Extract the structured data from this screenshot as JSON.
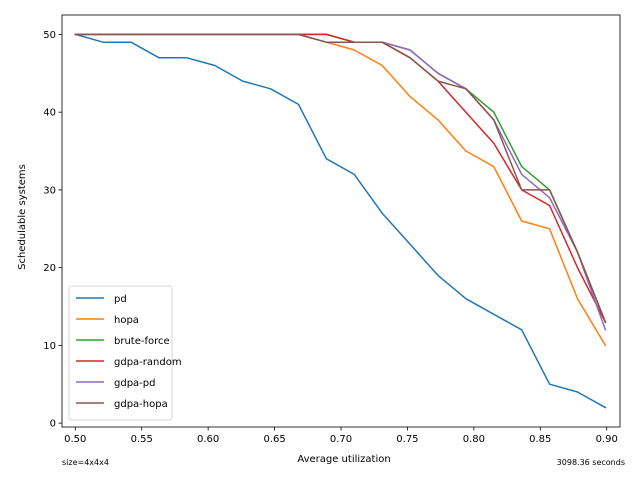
{
  "chart_data": {
    "type": "line",
    "title": "",
    "xlabel": "Average utilization",
    "ylabel": "Schedulable systems",
    "xlim": [
      0.49,
      0.91
    ],
    "ylim": [
      -0.5,
      52.5
    ],
    "xticks": [
      "0.50",
      "0.55",
      "0.60",
      "0.65",
      "0.70",
      "0.75",
      "0.80",
      "0.85",
      "0.90"
    ],
    "xtick_values": [
      0.5,
      0.55,
      0.6,
      0.65,
      0.7,
      0.75,
      0.8,
      0.85,
      0.9
    ],
    "yticks": [
      "0",
      "10",
      "20",
      "30",
      "40",
      "50"
    ],
    "ytick_values": [
      0,
      10,
      20,
      30,
      40,
      50
    ],
    "grid": false,
    "legend_position": "lower-left",
    "x": [
      0.5,
      0.521,
      0.542,
      0.563,
      0.584,
      0.605,
      0.626,
      0.647,
      0.668,
      0.689,
      0.71,
      0.731,
      0.752,
      0.773,
      0.794,
      0.815,
      0.836,
      0.857,
      0.878,
      0.899
    ],
    "series": [
      {
        "name": "pd",
        "color": "#1f77b4",
        "values": [
          50,
          49,
          49,
          47,
          47,
          46,
          44,
          43,
          41,
          34,
          32,
          27,
          23,
          19,
          16,
          14,
          12,
          5,
          4,
          2
        ]
      },
      {
        "name": "hopa",
        "color": "#ff7f0e",
        "values": [
          50,
          50,
          50,
          50,
          50,
          50,
          50,
          50,
          50,
          49,
          48,
          46,
          42,
          39,
          35,
          33,
          26,
          25,
          16,
          10
        ]
      },
      {
        "name": "brute-force",
        "color": "#2ca02c",
        "values": [
          50,
          50,
          50,
          50,
          50,
          50,
          50,
          50,
          50,
          50,
          49,
          49,
          48,
          45,
          43,
          40,
          33,
          30,
          22,
          13
        ]
      },
      {
        "name": "gdpa-random",
        "color": "#d62728",
        "values": [
          50,
          50,
          50,
          50,
          50,
          50,
          50,
          50,
          50,
          50,
          49,
          49,
          47,
          44,
          40,
          36,
          30,
          28,
          20,
          13
        ]
      },
      {
        "name": "gdpa-pd",
        "color": "#9467bd",
        "values": [
          50,
          50,
          50,
          50,
          50,
          50,
          50,
          50,
          50,
          49,
          49,
          49,
          48,
          45,
          43,
          39,
          32,
          29,
          22,
          12
        ]
      },
      {
        "name": "gdpa-hopa",
        "color": "#8c564b",
        "values": [
          50,
          50,
          50,
          50,
          50,
          50,
          50,
          50,
          50,
          49,
          49,
          49,
          47,
          44,
          43,
          39,
          30,
          30,
          22,
          13
        ]
      }
    ],
    "annotations": {
      "bottom_left": "size=4x4x4",
      "bottom_right": "3098.36 seconds"
    }
  }
}
